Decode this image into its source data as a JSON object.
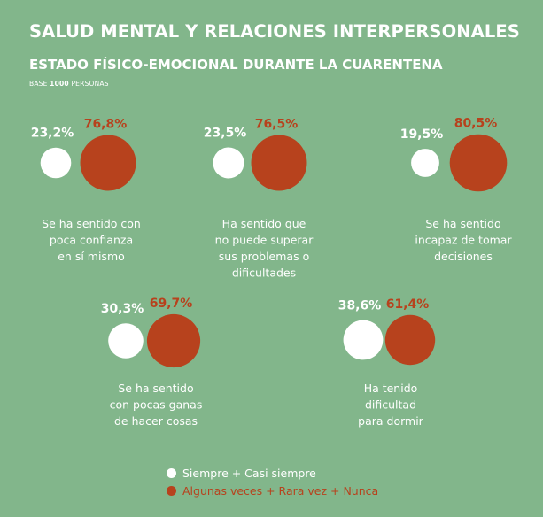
{
  "title": "SALUD MENTAL Y RELACIONES INTERPERSONALES",
  "subtitle": "ESTADO FÍSICO-EMOCIONAL DURANTE LA CUARENTENA",
  "base": {
    "prefix": "BASE",
    "number": "1000",
    "suffix": "PERSONAS"
  },
  "colors": {
    "background": "#82b68b",
    "white": "#ffffff",
    "orange": "#b7421d"
  },
  "chart_data": {
    "type": "bubble",
    "series": [
      {
        "name": "Siempre + Casi siempre",
        "color": "#ffffff"
      },
      {
        "name": "Algunas veces + Rara vez + Nunca",
        "color": "#b7421d"
      }
    ],
    "items": [
      {
        "label": [
          "Se ha sentido con",
          "poca confianza",
          "en sí mismo"
        ],
        "values": [
          23.2,
          76.8
        ],
        "value_labels": [
          "23,2%",
          "76,8%"
        ]
      },
      {
        "label": [
          "Ha sentido que",
          "no puede superar",
          "sus problemas o",
          "dificultades"
        ],
        "values": [
          23.5,
          76.5
        ],
        "value_labels": [
          "23,5%",
          "76,5%"
        ]
      },
      {
        "label": [
          "Se ha sentido",
          "incapaz de tomar",
          "decisiones"
        ],
        "values": [
          19.5,
          80.5
        ],
        "value_labels": [
          "19,5%",
          "80,5%"
        ]
      },
      {
        "label": [
          "Se ha sentido",
          "con pocas ganas",
          "de hacer cosas"
        ],
        "values": [
          30.3,
          69.7
        ],
        "value_labels": [
          "30,3%",
          "69,7%"
        ]
      },
      {
        "label": [
          "Ha tenido",
          "dificultad",
          "para dormir"
        ],
        "values": [
          38.6,
          61.4
        ],
        "value_labels": [
          "38,6%",
          "61,4%"
        ]
      }
    ]
  }
}
